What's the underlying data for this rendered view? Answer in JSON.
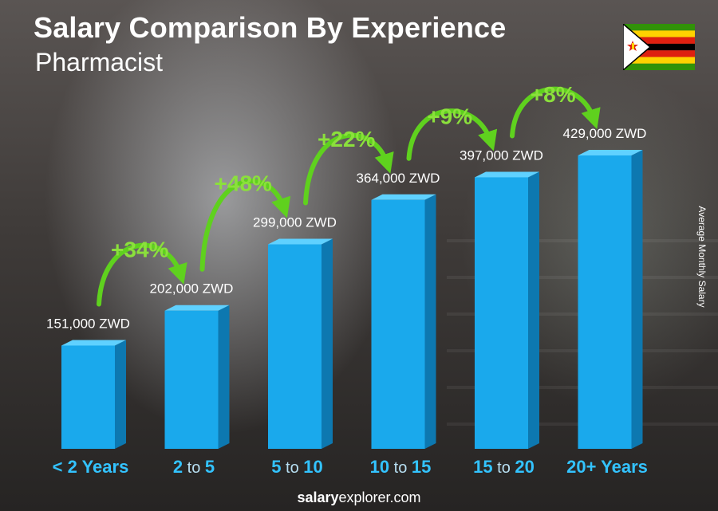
{
  "title": "Salary Comparison By Experience",
  "subtitle": "Pharmacist",
  "y_axis_label": "Average Monthly Salary",
  "footer": {
    "brand_bold": "salary",
    "brand_rest": "explorer.com"
  },
  "flag": {
    "name": "Zimbabwe flag"
  },
  "colors": {
    "bar_front": "#1aa9ec",
    "bar_side": "#0d78b0",
    "bar_top": "#5fd1ff",
    "increase_text": "#8be03c",
    "arrow": "#5fd11e",
    "category_text": "#33c3ff",
    "category_connector": "#b7dff2"
  },
  "chart_data": {
    "type": "bar",
    "title": "Salary Comparison By Experience",
    "subtitle": "Pharmacist",
    "ylabel": "Average Monthly Salary",
    "categories": [
      "< 2 Years",
      "2 to 5",
      "5 to 10",
      "10 to 15",
      "15 to 20",
      "20+ Years"
    ],
    "category_parts": [
      [
        {
          "t": "< 2 Years",
          "b": true
        }
      ],
      [
        {
          "t": "2",
          "b": true
        },
        {
          "t": " to ",
          "b": false
        },
        {
          "t": "5",
          "b": true
        }
      ],
      [
        {
          "t": "5",
          "b": true
        },
        {
          "t": " to ",
          "b": false
        },
        {
          "t": "10",
          "b": true
        }
      ],
      [
        {
          "t": "10",
          "b": true
        },
        {
          "t": " to ",
          "b": false
        },
        {
          "t": "15",
          "b": true
        }
      ],
      [
        {
          "t": "15",
          "b": true
        },
        {
          "t": " to ",
          "b": false
        },
        {
          "t": "20",
          "b": true
        }
      ],
      [
        {
          "t": "20+ Years",
          "b": true
        }
      ]
    ],
    "values": [
      151000,
      202000,
      299000,
      364000,
      397000,
      429000
    ],
    "value_labels": [
      "151,000 ZWD",
      "202,000 ZWD",
      "299,000 ZWD",
      "364,000 ZWD",
      "397,000 ZWD",
      "429,000 ZWD"
    ],
    "increases": [
      "+34%",
      "+48%",
      "+22%",
      "+9%",
      "+8%"
    ],
    "unit": "ZWD",
    "ylim": [
      0,
      429000
    ],
    "grid": false
  }
}
